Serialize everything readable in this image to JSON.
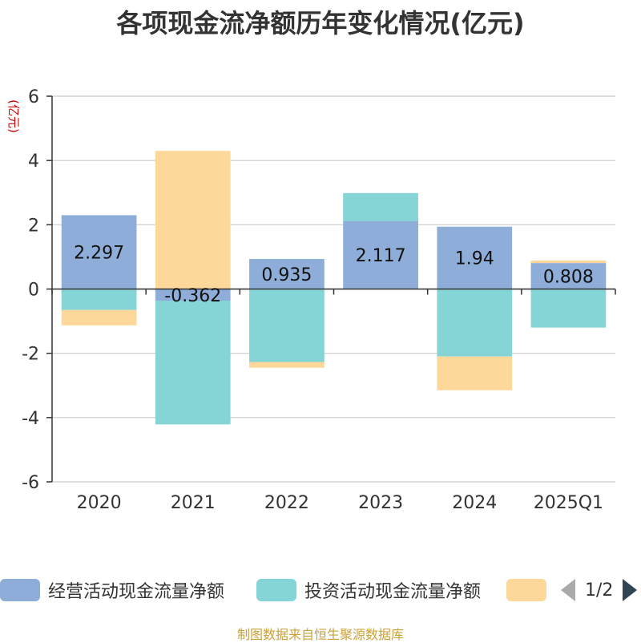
{
  "title": "各项现金流净额历年变化情况(亿元)",
  "source_note": "制图数据来自恒生聚源数据库",
  "legend": {
    "pager": "1/2"
  },
  "colors": {
    "operating": "#8eaed9",
    "investing": "#85d4d6",
    "financing": "#fdd89a",
    "axis": "#333333",
    "grid": "#cccccc"
  },
  "chart_data": {
    "type": "bar",
    "stacked": true,
    "title": "各项现金流净额历年变化情况(亿元)",
    "ylabel": "(亿元)",
    "xlabel": "",
    "categories": [
      "2020",
      "2021",
      "2022",
      "2023",
      "2024",
      "2025Q1"
    ],
    "ylim": [
      -6,
      6
    ],
    "yticks": [
      -6,
      -4,
      -2,
      0,
      2,
      4,
      6
    ],
    "grid": true,
    "legend_position": "bottom",
    "series": [
      {
        "name": "经营活动现金流量净额",
        "values": [
          2.297,
          -0.362,
          0.935,
          2.117,
          1.94,
          0.808
        ],
        "labels": [
          "2.297",
          "-0.362",
          "0.935",
          "2.117",
          "1.94",
          "0.808"
        ]
      },
      {
        "name": "投资活动现金流量净额",
        "values": [
          -0.65,
          -3.85,
          -2.27,
          0.87,
          -2.1,
          -1.2
        ]
      },
      {
        "name": "",
        "values": [
          -0.48,
          4.3,
          -0.18,
          0.0,
          -1.05,
          0.08
        ]
      }
    ]
  }
}
